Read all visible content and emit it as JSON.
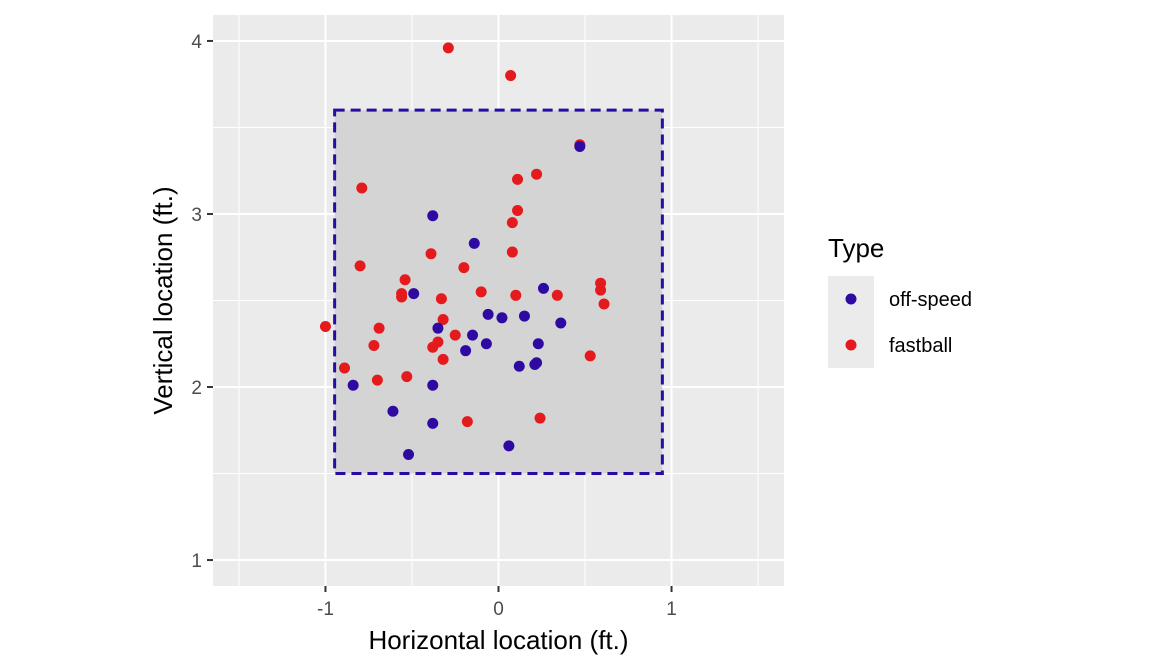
{
  "chart_data": {
    "type": "scatter",
    "xlabel": "Horizontal location (ft.)",
    "ylabel": "Vertical location (ft.)",
    "xlim": [
      -1.65,
      1.65
    ],
    "ylim": [
      0.85,
      4.15
    ],
    "x_ticks": [
      -1,
      0,
      1
    ],
    "y_ticks": [
      1,
      2,
      3,
      4
    ],
    "x_tick_labels": [
      "-1",
      "0",
      "1"
    ],
    "y_tick_labels": [
      "1",
      "2",
      "3",
      "4"
    ],
    "grid": true,
    "legend": {
      "title": "Type",
      "position": "right"
    },
    "strike_zone": {
      "x": [
        -0.947,
        0.947
      ],
      "y": [
        1.5,
        3.6
      ],
      "border_color": "#2a0aa0",
      "fill_color": "#d4d4d4",
      "line_style": "dashed"
    },
    "series": [
      {
        "name": "off-speed",
        "color": "#2e0aa3",
        "points": [
          [
            -0.38,
            2.99
          ],
          [
            -0.14,
            2.83
          ],
          [
            -0.49,
            2.54
          ],
          [
            -0.35,
            2.34
          ],
          [
            -0.06,
            2.42
          ],
          [
            0.02,
            2.4
          ],
          [
            0.15,
            2.41
          ],
          [
            0.26,
            2.57
          ],
          [
            0.36,
            2.37
          ],
          [
            -0.15,
            2.3
          ],
          [
            -0.07,
            2.25
          ],
          [
            -0.19,
            2.21
          ],
          [
            0.23,
            2.25
          ],
          [
            0.12,
            2.12
          ],
          [
            0.21,
            2.13
          ],
          [
            0.22,
            2.14
          ],
          [
            -0.84,
            2.01
          ],
          [
            -0.38,
            2.01
          ],
          [
            -0.61,
            1.86
          ],
          [
            -0.38,
            1.79
          ],
          [
            0.06,
            1.66
          ],
          [
            -0.52,
            1.61
          ],
          [
            0.47,
            3.39
          ]
        ]
      },
      {
        "name": "fastball",
        "color": "#e41a1c",
        "points": [
          [
            -0.29,
            3.96
          ],
          [
            0.07,
            3.8
          ],
          [
            0.47,
            3.4
          ],
          [
            -0.79,
            3.15
          ],
          [
            0.22,
            3.23
          ],
          [
            0.11,
            3.2
          ],
          [
            0.11,
            3.02
          ],
          [
            0.08,
            2.95
          ],
          [
            0.08,
            2.78
          ],
          [
            -0.8,
            2.7
          ],
          [
            -0.39,
            2.77
          ],
          [
            -0.2,
            2.69
          ],
          [
            -0.54,
            2.62
          ],
          [
            -0.56,
            2.54
          ],
          [
            -0.56,
            2.52
          ],
          [
            -0.33,
            2.51
          ],
          [
            -0.1,
            2.55
          ],
          [
            0.1,
            2.53
          ],
          [
            0.34,
            2.53
          ],
          [
            0.59,
            2.6
          ],
          [
            0.59,
            2.56
          ],
          [
            0.61,
            2.48
          ],
          [
            -0.32,
            2.39
          ],
          [
            -0.25,
            2.3
          ],
          [
            -0.35,
            2.26
          ],
          [
            -0.38,
            2.23
          ],
          [
            -1.0,
            2.35
          ],
          [
            -0.69,
            2.34
          ],
          [
            -0.72,
            2.24
          ],
          [
            -0.32,
            2.16
          ],
          [
            0.53,
            2.18
          ],
          [
            -0.89,
            2.11
          ],
          [
            -0.53,
            2.06
          ],
          [
            -0.7,
            2.04
          ],
          [
            -0.18,
            1.8
          ],
          [
            0.24,
            1.82
          ]
        ]
      }
    ]
  }
}
